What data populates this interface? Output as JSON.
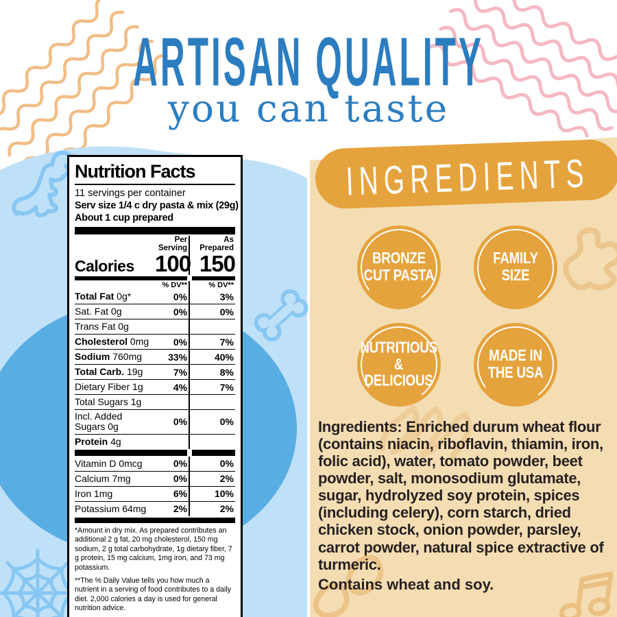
{
  "colors": {
    "header_blue": "#2b7dc0",
    "light_blue": "#bfe1f8",
    "mid_blue": "#58ade3",
    "doodle_blue": "#88c7f2",
    "orange": "#e5a33d",
    "tan": "#f4ddb3",
    "tan_doodle": "#eac083",
    "pink_wave": "#f5b9c2",
    "orange_wave": "#f2bd85",
    "ink": "#262120"
  },
  "header": {
    "title": "ARTISAN QUALITY",
    "subtitle": "you can taste"
  },
  "nutrition": {
    "title": "Nutrition Facts",
    "servings_per_container": "11 servings per container",
    "serving_size": "Serv size 1/4 c dry pasta & mix (29g)",
    "prepared": "About 1 cup prepared",
    "col_per_serving": "Per Serving",
    "col_as_prepared": "As Prepared",
    "calories_label": "Calories",
    "calories_per_serving": "100",
    "calories_as_prepared": "150",
    "dv_header_left": "% DV**",
    "dv_header_right": "% DV**",
    "rows": [
      {
        "name": "Total Fat",
        "amount": "0g*",
        "bold": true,
        "indent": 0,
        "ps": "0%",
        "ap": "3%"
      },
      {
        "name": "Sat. Fat",
        "amount": "0g",
        "bold": false,
        "indent": 1,
        "ps": "0%",
        "ap": "0%"
      },
      {
        "name": "Trans Fat",
        "amount": "0g",
        "bold": false,
        "indent": 1,
        "ps": "",
        "ap": ""
      },
      {
        "name": "Cholesterol",
        "amount": "0mg",
        "bold": true,
        "indent": 0,
        "ps": "0%",
        "ap": "7%"
      },
      {
        "name": "Sodium",
        "amount": "760mg",
        "bold": true,
        "indent": 0,
        "ps": "33%",
        "ap": "40%"
      },
      {
        "name": "Total Carb.",
        "amount": "19g",
        "bold": true,
        "indent": 0,
        "ps": "7%",
        "ap": "8%"
      },
      {
        "name": "Dietary Fiber",
        "amount": "1g",
        "bold": false,
        "indent": 1,
        "ps": "4%",
        "ap": "7%"
      },
      {
        "name": "Total Sugars",
        "amount": "1g",
        "bold": false,
        "indent": 1,
        "ps": "",
        "ap": ""
      },
      {
        "name": "Incl. Added Sugars",
        "amount": "0g",
        "bold": false,
        "indent": 2,
        "ps": "0%",
        "ap": "0%"
      },
      {
        "name": "Protein",
        "amount": "4g",
        "bold": true,
        "indent": 0,
        "ps": "",
        "ap": ""
      }
    ],
    "vitamins": [
      {
        "name": "Vitamin D",
        "amount": "0mcg",
        "ps": "0%",
        "ap": "0%"
      },
      {
        "name": "Calcium",
        "amount": "7mg",
        "ps": "0%",
        "ap": "2%"
      },
      {
        "name": "Iron",
        "amount": "1mg",
        "ps": "6%",
        "ap": "10%"
      },
      {
        "name": "Potassium",
        "amount": "64mg",
        "ps": "2%",
        "ap": "2%"
      }
    ],
    "footnote1": "*Amount in dry mix.  As prepared contributes an additional 2 g fat, 20 mg cholesterol, 150 mg sodium, 2 g total carbohydrate, 1g dietary fiber, 7 g protein, 15 mg calcium, 1mg iron, and 73 mg potassium.",
    "footnote2": "**The % Daily Value tells you how much a nutrient in a serving of food contributes to a daily diet. 2,000 calories a day is used for general nutrition advice."
  },
  "ingredients_panel": {
    "heading": "INGREDIENTS",
    "badges": [
      "BRONZE CUT PASTA",
      "FAMILY SIZE",
      "NUTRITIOUS & DELICIOUS",
      "MADE IN THE USA"
    ],
    "ingredients_text": "Ingredients: Enriched durum wheat flour (contains niacin, riboflavin, thiamin, iron, folic acid), water, tomato powder, beet powder, salt, monosodium glutamate, sugar, hydrolyzed soy protein, spices (including celery), corn starch, dried chicken stock, onion powder, parsley, carrot powder, natural spice extractive of turmeric.",
    "allergen_text": "Contains wheat and soy."
  },
  "decorations": [
    "orange-waves-top-left",
    "pink-waves-top-right",
    "dinosaur-doodle",
    "bone-doodle",
    "spider-web-doodle",
    "pasta-scribble-doodle",
    "rotini-doodle",
    "shell-pasta-doodle",
    "music-notes-doodle"
  ]
}
